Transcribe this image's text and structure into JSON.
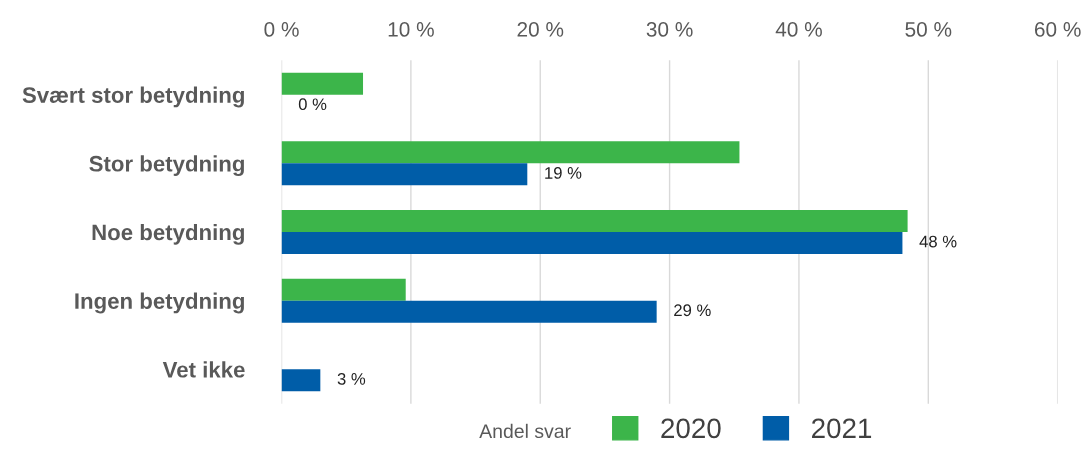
{
  "chart_data": {
    "type": "bar",
    "orientation": "horizontal",
    "categories": [
      "Svært stor betydning",
      "Stor betydning",
      "Noe betydning",
      "Ingen betydning",
      "Vet ikke"
    ],
    "series": [
      {
        "name": "2020",
        "color": "#3cb54a",
        "values": [
          6.3,
          35.4,
          48.4,
          9.6,
          null
        ]
      },
      {
        "name": "2021",
        "color": "#005da8",
        "values": [
          0,
          19,
          48,
          29,
          3
        ],
        "value_labels": [
          "0 %",
          "19 %",
          "48 %",
          "29 %",
          "3 %"
        ]
      }
    ],
    "xlim": [
      0,
      60
    ],
    "xticks": [
      {
        "value": 0,
        "label": "0 %"
      },
      {
        "value": 10,
        "label": "10 %"
      },
      {
        "value": 20,
        "label": "20 %"
      },
      {
        "value": 30,
        "label": "30 %"
      },
      {
        "value": 40,
        "label": "40 %"
      },
      {
        "value": 50,
        "label": "50 %"
      },
      {
        "value": 60,
        "label": "60 %"
      }
    ],
    "grid": "x",
    "legend": "bottom",
    "legend_title": "Andel svar"
  }
}
